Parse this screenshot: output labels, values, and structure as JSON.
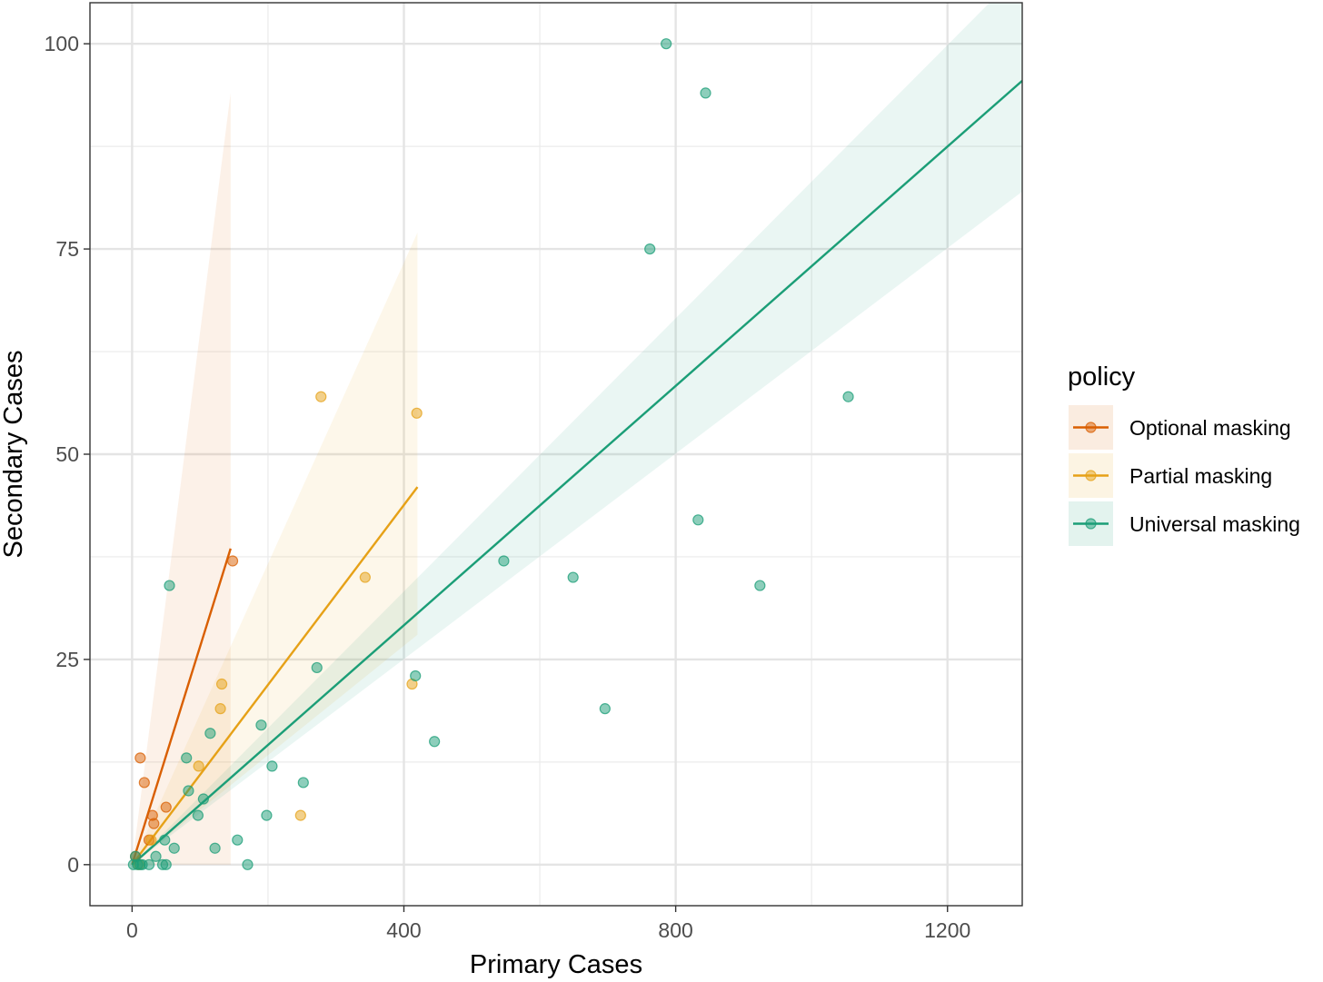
{
  "chart_data": {
    "type": "scatter",
    "xlabel": "Primary Cases",
    "ylabel": "Secondary Cases",
    "xlim": [
      -62,
      1310
    ],
    "ylim": [
      -5,
      105
    ],
    "x_ticks": [
      0,
      400,
      800,
      1200
    ],
    "y_ticks": [
      0,
      25,
      50,
      75,
      100
    ],
    "x_tick_labels": [
      "0",
      "400",
      "800",
      "1200"
    ],
    "y_tick_labels": [
      "0",
      "25",
      "50",
      "75",
      "100"
    ],
    "grid": true,
    "legend_title": "policy",
    "legend_position": "right",
    "series": [
      {
        "name": "Optional masking",
        "color": "#D95F02",
        "fit": {
          "x0": 0,
          "y0": 0,
          "x1": 145,
          "y1": 38.5
        },
        "ribbon": {
          "x": [
            0,
            145
          ],
          "lower": [
            0,
            0
          ],
          "upper": [
            0,
            94
          ]
        },
        "points": [
          [
            5,
            1
          ],
          [
            12,
            13
          ],
          [
            18,
            10
          ],
          [
            25,
            3
          ],
          [
            30,
            6
          ],
          [
            32,
            5
          ],
          [
            50,
            7
          ],
          [
            148,
            37
          ]
        ]
      },
      {
        "name": "Partial masking",
        "color": "#E6A117",
        "fit": {
          "x0": 0,
          "y0": 0,
          "x1": 420,
          "y1": 46
        },
        "ribbon": {
          "x": [
            0,
            420
          ],
          "lower": [
            0,
            28
          ],
          "upper": [
            0,
            77
          ]
        },
        "points": [
          [
            10,
            0
          ],
          [
            28,
            3
          ],
          [
            98,
            12
          ],
          [
            130,
            19
          ],
          [
            132,
            22
          ],
          [
            248,
            6
          ],
          [
            278,
            57
          ],
          [
            343,
            35
          ],
          [
            412,
            22
          ],
          [
            419,
            55
          ]
        ]
      },
      {
        "name": "Universal masking",
        "color": "#1B9E77",
        "fit": {
          "x0": 0,
          "y0": 0,
          "x1": 1310,
          "y1": 95.5
        },
        "ribbon": {
          "x": [
            0,
            1310
          ],
          "lower": [
            0,
            82
          ],
          "upper": [
            0,
            109
          ]
        },
        "points": [
          [
            2,
            0
          ],
          [
            5,
            1
          ],
          [
            8,
            0
          ],
          [
            12,
            0
          ],
          [
            15,
            0
          ],
          [
            25,
            0
          ],
          [
            35,
            1
          ],
          [
            45,
            0
          ],
          [
            48,
            3
          ],
          [
            50,
            0
          ],
          [
            55,
            34
          ],
          [
            62,
            2
          ],
          [
            80,
            13
          ],
          [
            83,
            9
          ],
          [
            97,
            6
          ],
          [
            105,
            8
          ],
          [
            115,
            16
          ],
          [
            122,
            2
          ],
          [
            155,
            3
          ],
          [
            170,
            0
          ],
          [
            190,
            17
          ],
          [
            198,
            6
          ],
          [
            206,
            12
          ],
          [
            252,
            10
          ],
          [
            272,
            24
          ],
          [
            417,
            23
          ],
          [
            445,
            15
          ],
          [
            547,
            37
          ],
          [
            649,
            35
          ],
          [
            696,
            19
          ],
          [
            762,
            75
          ],
          [
            786,
            100
          ],
          [
            833,
            42
          ],
          [
            844,
            94
          ],
          [
            924,
            34
          ],
          [
            1054,
            57
          ]
        ]
      }
    ]
  }
}
